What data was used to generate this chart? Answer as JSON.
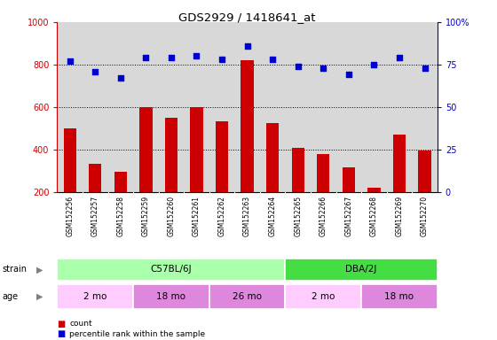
{
  "title": "GDS2929 / 1418641_at",
  "samples": [
    "GSM152256",
    "GSM152257",
    "GSM152258",
    "GSM152259",
    "GSM152260",
    "GSM152261",
    "GSM152262",
    "GSM152263",
    "GSM152264",
    "GSM152265",
    "GSM152266",
    "GSM152267",
    "GSM152268",
    "GSM152269",
    "GSM152270"
  ],
  "counts": [
    500,
    335,
    295,
    600,
    550,
    600,
    535,
    820,
    525,
    410,
    380,
    315,
    220,
    470,
    395
  ],
  "percentiles": [
    77,
    71,
    67,
    79,
    79,
    80,
    78,
    86,
    78,
    74,
    73,
    69,
    75,
    79,
    73
  ],
  "bar_color": "#cc0000",
  "dot_color": "#0000cc",
  "ymin": 200,
  "ymax": 1000,
  "ylim_left": [
    200,
    1000
  ],
  "ylim_right": [
    0,
    100
  ],
  "yticks_left": [
    200,
    400,
    600,
    800,
    1000
  ],
  "yticks_right": [
    0,
    25,
    50,
    75,
    100
  ],
  "grid_lines": [
    400,
    600,
    800
  ],
  "strain_groups": [
    {
      "label": "C57BL/6J",
      "start": 0,
      "end": 9,
      "color": "#aaffaa"
    },
    {
      "label": "DBA/2J",
      "start": 9,
      "end": 15,
      "color": "#44dd44"
    }
  ],
  "age_groups": [
    {
      "label": "2 mo",
      "start": 0,
      "end": 3,
      "color": "#ffccff"
    },
    {
      "label": "18 mo",
      "start": 3,
      "end": 6,
      "color": "#dd88dd"
    },
    {
      "label": "26 mo",
      "start": 6,
      "end": 9,
      "color": "#dd88dd"
    },
    {
      "label": "2 mo",
      "start": 9,
      "end": 12,
      "color": "#ffccff"
    },
    {
      "label": "18 mo",
      "start": 12,
      "end": 15,
      "color": "#dd88dd"
    }
  ],
  "plot_bg_color": "#d8d8d8",
  "xtick_bg_color": "#c8c8c8"
}
